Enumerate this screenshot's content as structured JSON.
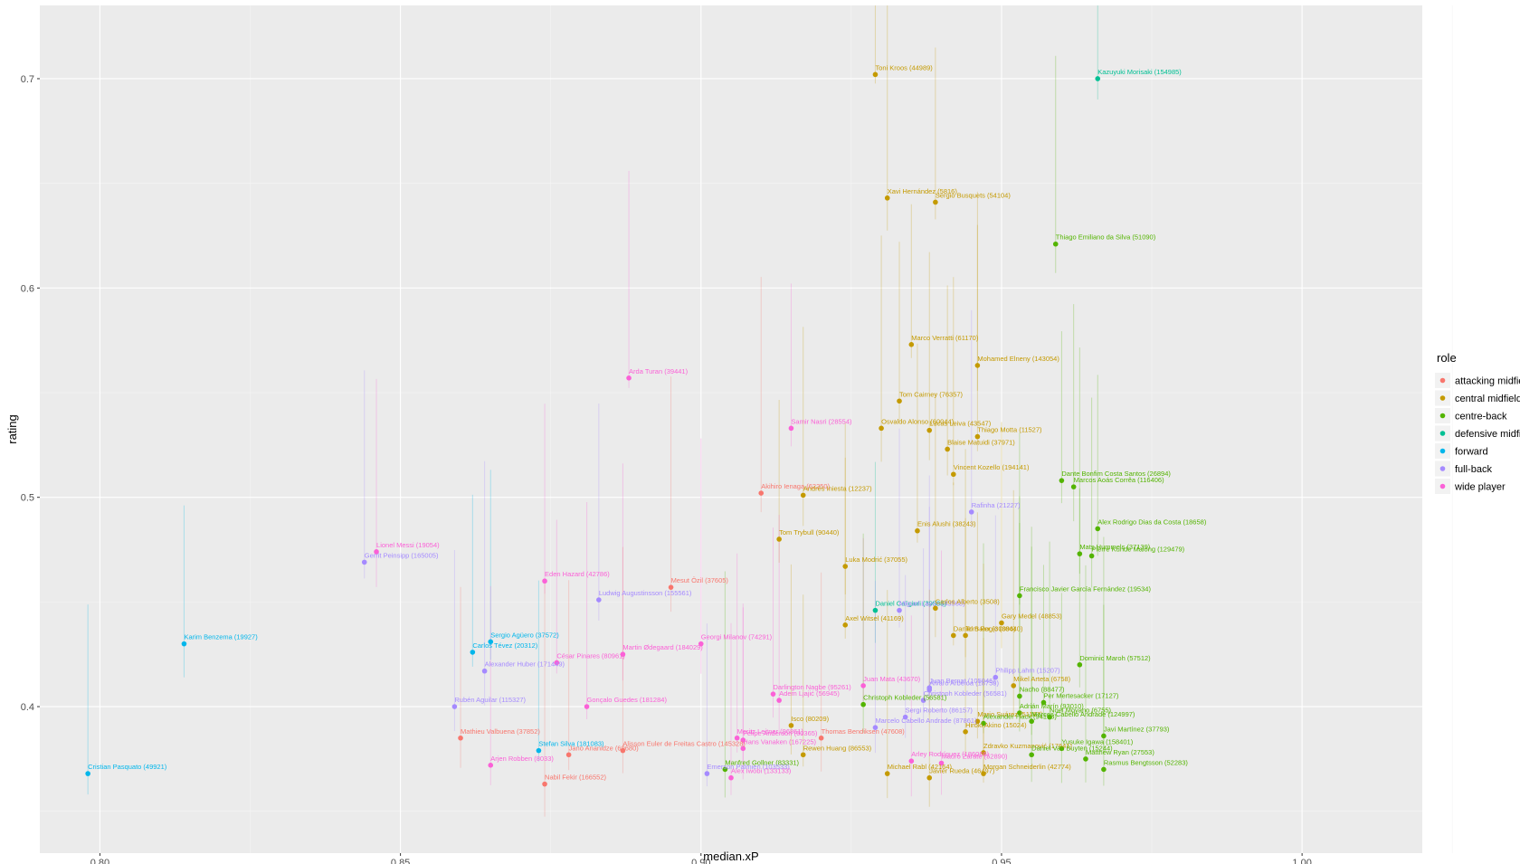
{
  "chart_data": {
    "type": "scatter",
    "title": "",
    "xlabel": "median.xP",
    "ylabel": "rating",
    "xlim": [
      0.79,
      1.02
    ],
    "ylim": [
      0.33,
      0.735
    ],
    "x_ticks": [
      0.8,
      0.85,
      0.9,
      0.95,
      1.0
    ],
    "x_tick_labels": [
      "0.80",
      "0.85",
      "0.90",
      "0.95",
      "1.00"
    ],
    "y_ticks": [
      0.4,
      0.5,
      0.6,
      0.7
    ],
    "y_tick_labels": [
      "0.4",
      "0.5",
      "0.6",
      "0.7"
    ],
    "grid": true,
    "background": "#ebebeb",
    "legend": {
      "title": "role",
      "position": "right",
      "entries": [
        {
          "name": "attacking midfielder",
          "color": "#F8766D"
        },
        {
          "name": "central midfielder",
          "color": "#C49A00"
        },
        {
          "name": "centre-back",
          "color": "#53B400"
        },
        {
          "name": "defensive midfielder",
          "color": "#00C094"
        },
        {
          "name": "forward",
          "color": "#00B6EB"
        },
        {
          "name": "full-back",
          "color": "#A58AFF"
        },
        {
          "name": "wide player",
          "color": "#FB61D7"
        }
      ]
    },
    "points": [
      {
        "label": "Toni Kroos (44989)",
        "x": 0.929,
        "y": 0.702,
        "role": 1
      },
      {
        "label": "Kazuyuki Morisaki (154985)",
        "x": 0.966,
        "y": 0.7,
        "role": 3
      },
      {
        "label": "Xavi Hernández (5816)",
        "x": 0.931,
        "y": 0.643,
        "role": 1
      },
      {
        "label": "Sergio Busquets (54104)",
        "x": 0.939,
        "y": 0.641,
        "role": 1
      },
      {
        "label": "Thiago Emiliano da Silva (51090)",
        "x": 0.959,
        "y": 0.621,
        "role": 2
      },
      {
        "label": "Marco Verratti (61170)",
        "x": 0.935,
        "y": 0.573,
        "role": 1
      },
      {
        "label": "Mohamed Elneny (143054)",
        "x": 0.946,
        "y": 0.563,
        "role": 1
      },
      {
        "label": "Arda Turan (39441)",
        "x": 0.888,
        "y": 0.557,
        "role": 6
      },
      {
        "label": "Tom Cairney (76357)",
        "x": 0.933,
        "y": 0.546,
        "role": 1
      },
      {
        "label": "Osvaldo Alonso (60044)",
        "x": 0.93,
        "y": 0.533,
        "role": 1
      },
      {
        "label": "Samir Nasri (28554)",
        "x": 0.915,
        "y": 0.533,
        "role": 6
      },
      {
        "label": "Lucas Leiva (43547)",
        "x": 0.938,
        "y": 0.532,
        "role": 1
      },
      {
        "label": "Thiago Motta (11527)",
        "x": 0.946,
        "y": 0.529,
        "role": 1
      },
      {
        "label": "Blaise Matuidi (37971)",
        "x": 0.941,
        "y": 0.523,
        "role": 1
      },
      {
        "label": "Vincent Kozello (194141)",
        "x": 0.942,
        "y": 0.511,
        "role": 1
      },
      {
        "label": "Dante Bonfim Costa Santos (26894)",
        "x": 0.96,
        "y": 0.508,
        "role": 2
      },
      {
        "label": "Marcos Aoás Corrêa (116406)",
        "x": 0.962,
        "y": 0.505,
        "role": 2
      },
      {
        "label": "Akihiro Ienaga (62250)",
        "x": 0.91,
        "y": 0.502,
        "role": 0
      },
      {
        "label": "Andrés Iniesta (12237)",
        "x": 0.917,
        "y": 0.501,
        "role": 1
      },
      {
        "label": "Rafinha (21227)",
        "x": 0.945,
        "y": 0.493,
        "role": 5
      },
      {
        "label": "Alex Rodrigo Dias da Costa (18658)",
        "x": 0.966,
        "y": 0.485,
        "role": 2
      },
      {
        "label": "Enis Alushi (38243)",
        "x": 0.936,
        "y": 0.484,
        "role": 1
      },
      {
        "label": "Tom Trybull (90440)",
        "x": 0.913,
        "y": 0.48,
        "role": 1
      },
      {
        "label": "Lionel Messi (19054)",
        "x": 0.846,
        "y": 0.474,
        "role": 6
      },
      {
        "label": "Mats Hummels (37139)",
        "x": 0.963,
        "y": 0.473,
        "role": 2
      },
      {
        "label": "Pierre Kunde Malong (129479)",
        "x": 0.965,
        "y": 0.472,
        "role": 2
      },
      {
        "label": "Gerrit Peinsipp (165005)",
        "x": 0.844,
        "y": 0.469,
        "role": 5
      },
      {
        "label": "Luka Modrić (37055)",
        "x": 0.924,
        "y": 0.467,
        "role": 1
      },
      {
        "label": "Eden Hazard (42786)",
        "x": 0.874,
        "y": 0.46,
        "role": 6
      },
      {
        "label": "Mesut Özil (37605)",
        "x": 0.895,
        "y": 0.457,
        "role": 0
      },
      {
        "label": "Francisco Javier García Fernández (19534)",
        "x": 0.953,
        "y": 0.453,
        "role": 2
      },
      {
        "label": "Ludwig Augustinsson (155561)",
        "x": 0.883,
        "y": 0.451,
        "role": 5
      },
      {
        "label": "Daniel Caligiuri (39588)",
        "x": 0.929,
        "y": 0.446,
        "role": 3
      },
      {
        "label": "Miguel Layún (43568)",
        "x": 0.933,
        "y": 0.446,
        "role": 5
      },
      {
        "label": "Carlos Alberto (3508)",
        "x": 0.939,
        "y": 0.447,
        "role": 1
      },
      {
        "label": "Axel Witsel (41169)",
        "x": 0.924,
        "y": 0.439,
        "role": 1
      },
      {
        "label": "Gary Medel (48853)",
        "x": 0.95,
        "y": 0.44,
        "role": 1
      },
      {
        "label": "Daniel Baier (30096)",
        "x": 0.942,
        "y": 0.434,
        "role": 1
      },
      {
        "label": "Tom Rogic (38440)",
        "x": 0.944,
        "y": 0.434,
        "role": 1
      },
      {
        "label": "Karim Benzema (19927)",
        "x": 0.814,
        "y": 0.43,
        "role": 4
      },
      {
        "label": "Sergio Agüero (37572)",
        "x": 0.865,
        "y": 0.431,
        "role": 4
      },
      {
        "label": "Georgi Milanov (74291)",
        "x": 0.9,
        "y": 0.43,
        "role": 6
      },
      {
        "label": "Carlos Tévez (20312)",
        "x": 0.862,
        "y": 0.426,
        "role": 4
      },
      {
        "label": "Martin Ødegaard (184029)",
        "x": 0.887,
        "y": 0.425,
        "role": 6
      },
      {
        "label": "César Pinares (80961)",
        "x": 0.876,
        "y": 0.421,
        "role": 6
      },
      {
        "label": "Dominic Maroh (57512)",
        "x": 0.963,
        "y": 0.42,
        "role": 2
      },
      {
        "label": "Alexander Huber (171449)",
        "x": 0.864,
        "y": 0.417,
        "role": 5
      },
      {
        "label": "Philipp Lahm (15207)",
        "x": 0.949,
        "y": 0.414,
        "role": 5
      },
      {
        "label": "Mikel Arteta (6758)",
        "x": 0.952,
        "y": 0.41,
        "role": 1
      },
      {
        "label": "Juan Mata (43670)",
        "x": 0.927,
        "y": 0.41,
        "role": 6
      },
      {
        "label": "Juan Bernat (105046)",
        "x": 0.938,
        "y": 0.409,
        "role": 5
      },
      {
        "label": "Álvaro Arbeloa (18759)",
        "x": 0.938,
        "y": 0.408,
        "role": 5
      },
      {
        "label": "Darlington Nagbe (95261)",
        "x": 0.912,
        "y": 0.406,
        "role": 6
      },
      {
        "label": "Nacho (88477)",
        "x": 0.953,
        "y": 0.405,
        "role": 2
      },
      {
        "label": "Christoph Kobleder (56581)",
        "x": 0.937,
        "y": 0.403,
        "role": 5
      },
      {
        "label": "Adem Ljajić (56945)",
        "x": 0.913,
        "y": 0.403,
        "role": 6
      },
      {
        "label": "Per Mertesacker (17127)",
        "x": 0.957,
        "y": 0.402,
        "role": 2
      },
      {
        "label": "Christoph Kobleder (56581)",
        "x": 0.927,
        "y": 0.401,
        "role": 2
      },
      {
        "label": "Gonçalo Guedes (181284)",
        "x": 0.881,
        "y": 0.4,
        "role": 6
      },
      {
        "label": "Rubén Aguilar (115327)",
        "x": 0.859,
        "y": 0.4,
        "role": 5
      },
      {
        "label": "Adrián Marín (93010)",
        "x": 0.953,
        "y": 0.397,
        "role": 2
      },
      {
        "label": "Sergi Roberto (86157)",
        "x": 0.934,
        "y": 0.395,
        "role": 5
      },
      {
        "label": "Noel Moyano (6755)",
        "x": 0.958,
        "y": 0.395,
        "role": 2
      },
      {
        "label": "Mario Suárez (51167)",
        "x": 0.946,
        "y": 0.393,
        "role": 1
      },
      {
        "label": "Isco (80209)",
        "x": 0.915,
        "y": 0.391,
        "role": 1
      },
      {
        "label": "Marcos Cabello Andrade (124997)",
        "x": 0.955,
        "y": 0.393,
        "role": 2
      },
      {
        "label": "Marcelo Cabello Andrade (87861)",
        "x": 0.929,
        "y": 0.39,
        "role": 5
      },
      {
        "label": "Alexander Hack (94103)",
        "x": 0.947,
        "y": 0.392,
        "role": 2
      },
      {
        "label": "Hiroki Akino (15024)",
        "x": 0.944,
        "y": 0.388,
        "role": 1
      },
      {
        "label": "Thomas Bendiksen (47608)",
        "x": 0.92,
        "y": 0.385,
        "role": 0
      },
      {
        "label": "Javi Martínez (37793)",
        "x": 0.967,
        "y": 0.386,
        "role": 2
      },
      {
        "label": "Mathieu Valbuena (37852)",
        "x": 0.86,
        "y": 0.385,
        "role": 0
      },
      {
        "label": "Moritz Leitner (96861)",
        "x": 0.906,
        "y": 0.385,
        "role": 6
      },
      {
        "label": "Felipe Anderson (60365)",
        "x": 0.907,
        "y": 0.384,
        "role": 6
      },
      {
        "label": "Stefan Silva (181083)",
        "x": 0.873,
        "y": 0.379,
        "role": 4
      },
      {
        "label": "Alisson Euler de Freitas Castro (145328)",
        "x": 0.887,
        "y": 0.379,
        "role": 0
      },
      {
        "label": "Yusuke Igawa (158401)",
        "x": 0.96,
        "y": 0.38,
        "role": 2
      },
      {
        "label": "Zdravko Kuzmanović (17641)",
        "x": 0.947,
        "y": 0.378,
        "role": 1
      },
      {
        "label": "Hans Vanaken (167225)",
        "x": 0.907,
        "y": 0.38,
        "role": 6
      },
      {
        "label": "Jano Ananidze (69680)",
        "x": 0.878,
        "y": 0.377,
        "role": 0
      },
      {
        "label": "Daniel Van Buyten (15244)",
        "x": 0.955,
        "y": 0.377,
        "role": 2
      },
      {
        "label": "Rewen Huang (86553)",
        "x": 0.917,
        "y": 0.377,
        "role": 1
      },
      {
        "label": "Matthew Ryan (27553)",
        "x": 0.964,
        "y": 0.375,
        "role": 2
      },
      {
        "label": "Arley Rodríguez (186066)",
        "x": 0.935,
        "y": 0.374,
        "role": 6
      },
      {
        "label": "Arjen Robben (8033)",
        "x": 0.865,
        "y": 0.372,
        "role": 6
      },
      {
        "label": "Mauro Zárate (52890)",
        "x": 0.94,
        "y": 0.373,
        "role": 6
      },
      {
        "label": "Rasmus Bengtsson (52283)",
        "x": 0.967,
        "y": 0.37,
        "role": 2
      },
      {
        "label": "Manfred Gollner (83331)",
        "x": 0.904,
        "y": 0.37,
        "role": 2
      },
      {
        "label": "Emerson Palmieri (103533)",
        "x": 0.901,
        "y": 0.368,
        "role": 5
      },
      {
        "label": "Michael Rabl (42164)",
        "x": 0.931,
        "y": 0.368,
        "role": 1
      },
      {
        "label": "Morgan Schneiderlin (42774)",
        "x": 0.947,
        "y": 0.368,
        "role": 1
      },
      {
        "label": "Cristian Pasquato (49921)",
        "x": 0.798,
        "y": 0.368,
        "role": 4
      },
      {
        "label": "Nabil Fekir (166552)",
        "x": 0.874,
        "y": 0.363,
        "role": 0
      },
      {
        "label": "Alex Iwobi (133133)",
        "x": 0.905,
        "y": 0.366,
        "role": 6
      },
      {
        "label": "Javier Rueda (46497)",
        "x": 0.938,
        "y": 0.366,
        "role": 1
      }
    ]
  }
}
